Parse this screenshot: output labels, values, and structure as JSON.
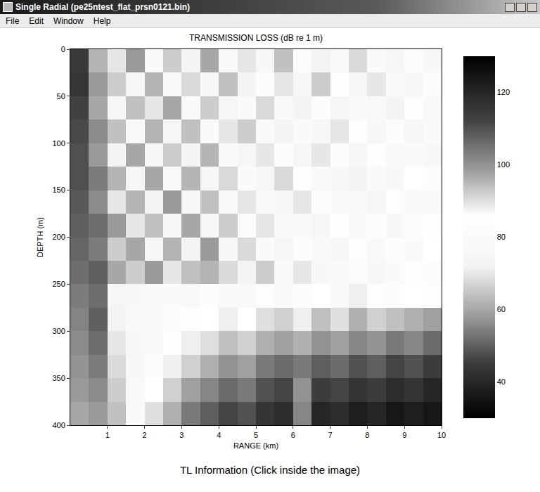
{
  "window": {
    "title": "Single Radial (pe25ntest_flat_prsn0121.bin)",
    "menu": [
      "File",
      "Edit",
      "Window",
      "Help"
    ],
    "footer": "TL Information (Click inside the image)"
  },
  "chart_data": {
    "type": "heatmap",
    "title": "TRANSMISSION LOSS (dB re 1 m)",
    "x_label": "RANGE (km)",
    "y_label": "DEPTH (m)",
    "x": [
      0.25,
      0.75,
      1.25,
      1.75,
      2.25,
      2.75,
      3.25,
      3.75,
      4.25,
      4.75,
      5.25,
      5.75,
      6.25,
      6.75,
      7.25,
      7.75,
      8.25,
      8.75,
      9.25,
      9.75
    ],
    "y": [
      12.5,
      37.5,
      62.5,
      87.5,
      112.5,
      137.5,
      162.5,
      187.5,
      212.5,
      237.5,
      262.5,
      287.5,
      312.5,
      337.5,
      362.5,
      387.5
    ],
    "cells": [
      [
        45,
        62,
        70,
        58,
        78,
        66,
        72,
        60,
        80,
        70,
        76,
        64,
        82,
        72,
        78,
        68,
        80,
        74,
        82,
        76
      ],
      [
        44,
        58,
        66,
        74,
        62,
        80,
        68,
        76,
        64,
        72,
        82,
        70,
        76,
        66,
        84,
        74,
        70,
        80,
        76,
        82
      ],
      [
        46,
        60,
        74,
        64,
        70,
        60,
        78,
        66,
        74,
        80,
        68,
        78,
        72,
        82,
        74,
        80,
        78,
        72,
        84,
        78
      ],
      [
        47,
        56,
        64,
        78,
        62,
        74,
        64,
        80,
        70,
        66,
        78,
        72,
        80,
        76,
        70,
        84,
        76,
        82,
        74,
        80
      ],
      [
        48,
        58,
        72,
        60,
        76,
        66,
        72,
        62,
        78,
        74,
        70,
        82,
        74,
        70,
        82,
        76,
        84,
        78,
        80,
        76
      ],
      [
        48,
        54,
        62,
        74,
        60,
        78,
        62,
        76,
        68,
        80,
        74,
        68,
        84,
        78,
        76,
        72,
        80,
        76,
        86,
        82
      ],
      [
        49,
        56,
        70,
        62,
        72,
        58,
        76,
        64,
        80,
        70,
        78,
        76,
        70,
        82,
        80,
        78,
        74,
        84,
        78,
        80
      ],
      [
        50,
        52,
        58,
        70,
        64,
        76,
        60,
        74,
        66,
        82,
        70,
        80,
        78,
        74,
        84,
        80,
        82,
        76,
        82,
        84
      ],
      [
        51,
        54,
        66,
        60,
        74,
        62,
        72,
        58,
        76,
        68,
        80,
        74,
        82,
        78,
        76,
        84,
        78,
        82,
        80,
        86
      ],
      [
        52,
        50,
        60,
        66,
        58,
        70,
        64,
        62,
        68,
        72,
        66,
        78,
        70,
        76,
        80,
        82,
        76,
        80,
        84,
        82
      ],
      [
        54,
        52,
        74,
        76,
        78,
        80,
        78,
        82,
        80,
        78,
        84,
        80,
        82,
        86,
        80,
        88,
        84,
        82,
        86,
        84
      ],
      [
        55,
        50,
        72,
        78,
        80,
        82,
        84,
        86,
        88,
        86,
        90,
        92,
        88,
        94,
        90,
        96,
        92,
        94,
        96,
        98
      ],
      [
        56,
        52,
        70,
        76,
        80,
        84,
        88,
        90,
        94,
        92,
        96,
        98,
        96,
        100,
        98,
        102,
        100,
        104,
        102,
        106
      ],
      [
        57,
        54,
        68,
        76,
        82,
        88,
        92,
        96,
        100,
        98,
        104,
        106,
        104,
        108,
        106,
        110,
        108,
        112,
        110,
        114
      ],
      [
        58,
        56,
        66,
        78,
        86,
        92,
        98,
        102,
        106,
        104,
        110,
        112,
        100,
        114,
        112,
        116,
        114,
        118,
        116,
        120
      ],
      [
        60,
        58,
        64,
        80,
        90,
        96,
        104,
        108,
        112,
        110,
        116,
        118,
        102,
        120,
        118,
        122,
        120,
        124,
        122,
        124
      ]
    ],
    "xlim": [
      0,
      10
    ],
    "xticks": [
      1,
      2,
      3,
      4,
      5,
      6,
      7,
      8,
      9,
      10
    ],
    "ylim": [
      0,
      400
    ],
    "yticks": [
      0,
      50,
      100,
      150,
      200,
      250,
      300,
      350,
      400
    ],
    "zlim": [
      30,
      130
    ],
    "zticks": [
      40,
      60,
      80,
      100,
      120
    ]
  }
}
